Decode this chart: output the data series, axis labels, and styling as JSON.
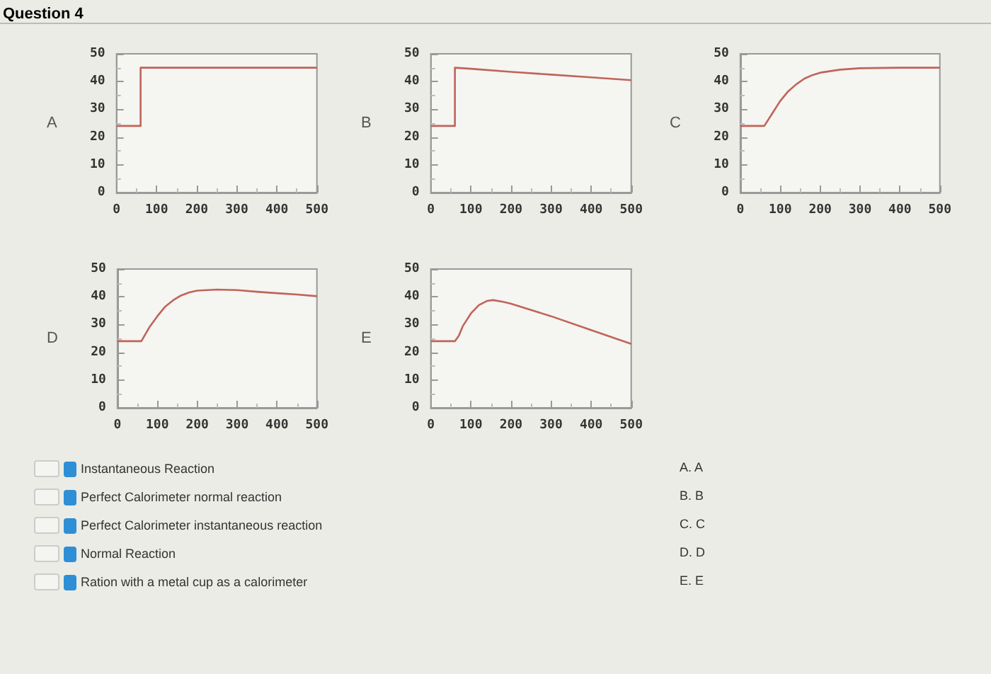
{
  "chart_data": [
    {
      "type": "other",
      "title": "Question 4"
    },
    {
      "type": "line",
      "ylabel": "A",
      "x": [
        0,
        60,
        60,
        500
      ],
      "values": [
        24,
        24,
        45,
        45
      ],
      "color": "#c0645a",
      "marker": "none",
      "xlim": [
        0,
        500
      ],
      "ylim": [
        0,
        50
      ],
      "xticks": [
        0,
        100,
        200,
        300,
        400,
        500
      ],
      "yticks": [
        0,
        10,
        20,
        30,
        40,
        50
      ]
    },
    {
      "type": "line",
      "ylabel": "B",
      "x": [
        0,
        60,
        60,
        100,
        200,
        300,
        400,
        500
      ],
      "values": [
        24,
        24,
        45,
        44.6,
        43.5,
        42.5,
        41.5,
        40.5
      ],
      "color": "#c0645a",
      "marker": "none",
      "xlim": [
        0,
        500
      ],
      "ylim": [
        0,
        50
      ],
      "xticks": [
        0,
        100,
        200,
        300,
        400,
        500
      ],
      "yticks": [
        0,
        10,
        20,
        30,
        40,
        50
      ]
    },
    {
      "type": "line",
      "ylabel": "C",
      "x": [
        0,
        60,
        80,
        100,
        120,
        140,
        160,
        180,
        200,
        250,
        300,
        400,
        500
      ],
      "values": [
        24,
        24,
        28.5,
        33,
        36.5,
        39,
        41,
        42.3,
        43.2,
        44.3,
        44.8,
        45,
        45
      ],
      "color": "#c0645a",
      "marker": "none",
      "xlim": [
        0,
        500
      ],
      "ylim": [
        0,
        50
      ],
      "xticks": [
        0,
        100,
        200,
        300,
        400,
        500
      ],
      "yticks": [
        0,
        10,
        20,
        30,
        40,
        50
      ]
    },
    {
      "type": "line",
      "ylabel": "D",
      "x": [
        0,
        60,
        80,
        100,
        120,
        140,
        160,
        180,
        200,
        250,
        300,
        350,
        400,
        450,
        500
      ],
      "values": [
        24,
        24,
        29,
        33,
        36.5,
        38.8,
        40.5,
        41.6,
        42.2,
        42.6,
        42.4,
        41.8,
        41.3,
        40.8,
        40.2
      ],
      "color": "#c0645a",
      "marker": "none",
      "xlim": [
        0,
        500
      ],
      "ylim": [
        0,
        50
      ],
      "xticks": [
        0,
        100,
        200,
        300,
        400,
        500
      ],
      "yticks": [
        0,
        10,
        20,
        30,
        40,
        50
      ]
    },
    {
      "type": "line",
      "ylabel": "E",
      "x": [
        0,
        60,
        70,
        80,
        100,
        120,
        140,
        155,
        180,
        200,
        300,
        400,
        500
      ],
      "values": [
        24,
        24,
        26,
        29.5,
        34,
        37,
        38.5,
        38.8,
        38.2,
        37.5,
        33,
        28,
        23
      ],
      "color": "#c0645a",
      "marker": "none",
      "xlim": [
        0,
        500
      ],
      "ylim": [
        0,
        50
      ],
      "xticks": [
        0,
        100,
        200,
        300,
        400,
        500
      ],
      "yticks": [
        0,
        10,
        20,
        30,
        40,
        50
      ]
    },
    {
      "type": "other",
      "annotations": [
        "Instantaneous Reaction",
        "Perfect Calorimeter normal reaction",
        "Perfect Calorimeter instantaneous reaction",
        "Normal Reaction",
        "Ration with a metal cup as a calorimeter",
        "A. A",
        "B. B",
        "C. C",
        "D. D",
        "E. E"
      ]
    }
  ]
}
